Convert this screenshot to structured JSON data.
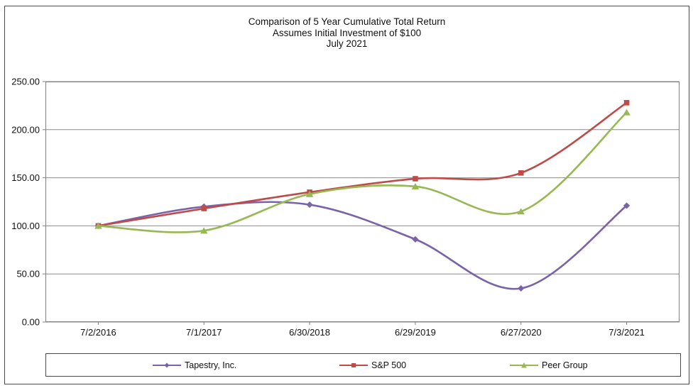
{
  "title": {
    "line1": "Comparison of 5 Year Cumulative Total Return",
    "line2": "Assumes Initial Investment of $100",
    "line3": "July 2021"
  },
  "chart_data": {
    "type": "line",
    "smooth": true,
    "title": "Comparison of 5 Year Cumulative Total Return",
    "subtitle": "Assumes Initial Investment of $100",
    "subtitle2": "July 2021",
    "categories": [
      "7/2/2016",
      "7/1/2017",
      "6/30/2018",
      "6/29/2019",
      "6/27/2020",
      "7/3/2021"
    ],
    "series": [
      {
        "name": "Tapestry, Inc.",
        "color": "#7a63a8",
        "marker": "diamond",
        "values": [
          100,
          120,
          122,
          86,
          35,
          121
        ]
      },
      {
        "name": "S&P 500",
        "color": "#be4b48",
        "marker": "square",
        "values": [
          100,
          118,
          135,
          149,
          155,
          228
        ]
      },
      {
        "name": "Peer Group",
        "color": "#97b954",
        "marker": "triangle",
        "values": [
          100,
          95,
          133,
          141,
          115,
          218
        ]
      }
    ],
    "ylim": [
      0,
      250
    ],
    "ytick_step": 50,
    "ytick_labels": [
      "0.00",
      "50.00",
      "100.00",
      "150.00",
      "200.00",
      "250.00"
    ],
    "grid": true,
    "legend_position": "bottom",
    "colors": {
      "grid": "#8c8c8c",
      "plot_border": "#808080",
      "outer_border": "#4a4a4a",
      "text": "#111111"
    }
  }
}
